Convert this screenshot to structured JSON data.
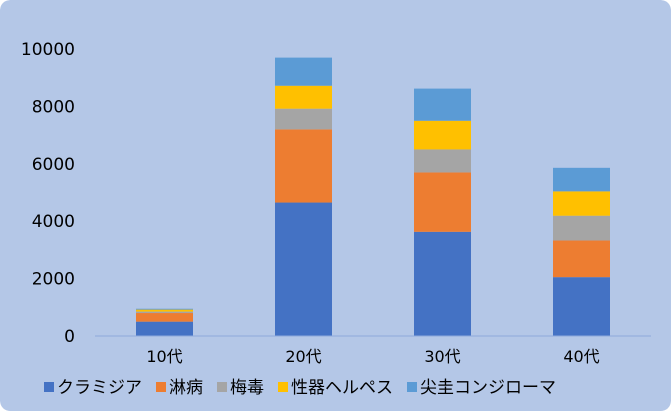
{
  "chart_data": {
    "type": "bar",
    "stacked": true,
    "categories": [
      "10代",
      "20代",
      "30代",
      "40代"
    ],
    "series": [
      {
        "name": "クラミジア",
        "color": "#4472C4",
        "values": [
          500,
          4650,
          3630,
          2050
        ]
      },
      {
        "name": "淋病",
        "color": "#ED7D31",
        "values": [
          300,
          2550,
          2070,
          1280
        ]
      },
      {
        "name": "梅毒",
        "color": "#A5A5A5",
        "values": [
          50,
          720,
          800,
          860
        ]
      },
      {
        "name": "性器ヘルペス",
        "color": "#FFC000",
        "values": [
          70,
          800,
          1000,
          850
        ]
      },
      {
        "name": "尖圭コンジローマ",
        "color": "#5B9BD5",
        "values": [
          30,
          980,
          1120,
          820
        ]
      }
    ],
    "yticks": [
      0,
      2000,
      4000,
      6000,
      8000,
      10000
    ],
    "ylim": [
      0,
      10000
    ],
    "grid": false,
    "legend_position": "bottom",
    "background": "#B4C7E7",
    "title": "",
    "xlabel": "",
    "ylabel": ""
  }
}
